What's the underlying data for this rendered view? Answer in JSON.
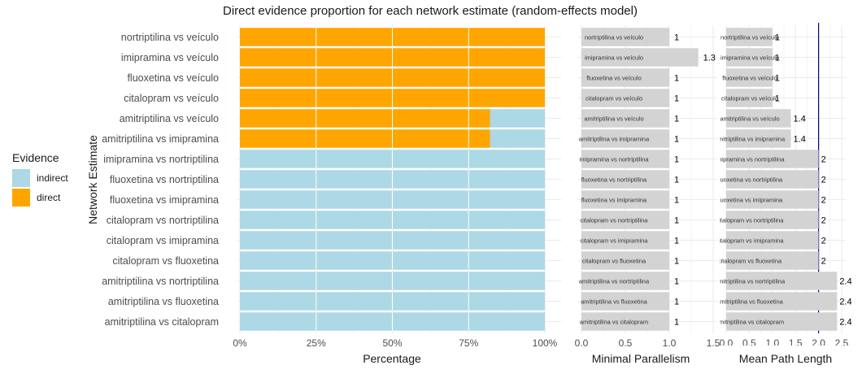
{
  "colors": {
    "indirect": "#ADD8E6",
    "direct": "#FFA500",
    "bar_gray": "#D3D3D3",
    "ref_line": "#00008B",
    "grid": "#EBEBEB",
    "text": "#4D4D4D",
    "title": "#1A1A1A"
  },
  "chart_data": [
    {
      "type": "bar",
      "orientation": "horizontal",
      "stacked": true,
      "title": "Direct evidence proportion for each network estimate (random-effects model)",
      "xlabel": "Percentage",
      "ylabel": "Network Estimate",
      "xlim": [
        0,
        100
      ],
      "xticks": [
        "0%",
        "25%",
        "50%",
        "75%",
        "100%"
      ],
      "grid": true,
      "legend": {
        "title": "Evidence",
        "position": "left",
        "entries": [
          "indirect",
          "direct"
        ]
      },
      "categories": [
        "nortriptilina vs veículo",
        "imipramina vs veículo",
        "fluoxetina vs veículo",
        "citalopram vs veículo",
        "amitriptilina vs veículo",
        "amitriptilina vs imipramina",
        "imipramina vs nortriptilina",
        "fluoxetina vs nortriptilina",
        "fluoxetina vs imipramina",
        "citalopram vs nortriptilina",
        "citalopram vs imipramina",
        "citalopram vs fluoxetina",
        "amitriptilina vs nortriptilina",
        "amitriptilina vs fluoxetina",
        "amitriptilina vs citalopram"
      ],
      "series": [
        {
          "name": "direct",
          "values": [
            100,
            100,
            100,
            100,
            82,
            82,
            0,
            0,
            0,
            0,
            0,
            0,
            0,
            0,
            0
          ]
        },
        {
          "name": "indirect",
          "values": [
            0,
            0,
            0,
            0,
            18,
            18,
            100,
            100,
            100,
            100,
            100,
            100,
            100,
            100,
            100
          ]
        }
      ]
    },
    {
      "type": "bar",
      "orientation": "horizontal",
      "xlabel": "Minimal Parallelism",
      "xlim": [
        0,
        1.5
      ],
      "xticks": [
        "0.0",
        "0.5",
        "1.0",
        "1.5"
      ],
      "grid": true,
      "bar_labels": [
        "nortriptilina vs veículo",
        "imipramina vs veículo",
        "fluoxetina vs veículo",
        "citalopram vs veículo",
        "amitriptilina vs veículo",
        "amitriptilina vs imipramina",
        "imipramina vs nortriptilina",
        "fluoxetina vs nortriptilina",
        "fluoxetina vs imipramina",
        "citalopram vs nortriptilina",
        "citalopram vs imipramina",
        "citalopram vs fluoxetina",
        "amitriptilina vs nortriptilina",
        "amitriptilina vs fluoxetina",
        "amitriptilina vs citalopram"
      ],
      "values": [
        1,
        1.33,
        1,
        1,
        1,
        1,
        1,
        1,
        1,
        1,
        1,
        1,
        1,
        1,
        1
      ],
      "value_labels": [
        "1",
        "1.3",
        "1",
        "1",
        "1",
        "1",
        "1",
        "1",
        "1",
        "1",
        "1",
        "1",
        "1",
        "1",
        "1"
      ]
    },
    {
      "type": "bar",
      "orientation": "horizontal",
      "xlabel": "Mean Path Length",
      "xlim": [
        0,
        2.5
      ],
      "xticks": [
        "0.0",
        "0.5",
        "1.0",
        "1.5",
        "2.0",
        "2.5"
      ],
      "grid": true,
      "reference_line": 2,
      "bar_labels": [
        "nortriptilina vs veículo",
        "imipramina vs veículo",
        "fluoxetina vs veículo",
        "citalopram vs veículo",
        "amitriptilina vs veículo",
        "amitriptilina vs imipramina",
        "imipramina vs nortriptilina",
        "fluoxetina vs nortriptilina",
        "fluoxetina vs imipramina",
        "citalopram vs nortriptilina",
        "citalopram vs imipramina",
        "citalopram vs fluoxetina",
        "amitriptilina vs nortriptilina",
        "amitriptilina vs fluoxetina",
        "amitriptilina vs citalopram"
      ],
      "values": [
        1,
        1,
        1,
        1,
        1.4,
        1.4,
        2,
        2,
        2,
        2,
        2,
        2,
        2.4,
        2.4,
        2.4
      ],
      "value_labels": [
        "1",
        "1",
        "1",
        "1",
        "1.4",
        "1.4",
        "2",
        "2",
        "2",
        "2",
        "2",
        "2",
        "2.4",
        "2.4",
        "2.4"
      ]
    }
  ]
}
